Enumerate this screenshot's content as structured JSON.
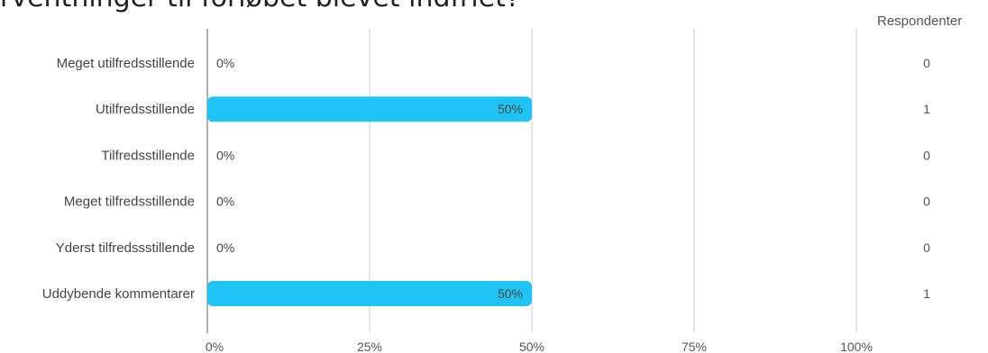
{
  "page": {
    "title": "rventninger til forløbet blevet indfriet?",
    "respondents_header": "Respondenter"
  },
  "colors": {
    "bar": "#20c4f4",
    "grid": "#cfcfcf",
    "axis": "#999999"
  },
  "chart_data": {
    "type": "bar",
    "orientation": "horizontal",
    "categories": [
      "Meget utilfredsstillende",
      "Utilfredsstillende",
      "Tilfredsstillende",
      "Meget tilfredsstillende",
      "Yderst tilfredssstillende",
      "Uddybende kommentarer"
    ],
    "values": [
      0,
      50,
      0,
      0,
      0,
      50
    ],
    "value_labels": [
      "0%",
      "50%",
      "0%",
      "0%",
      "0%",
      "50%"
    ],
    "respondents": [
      0,
      1,
      0,
      0,
      0,
      1
    ],
    "xlim": [
      0,
      100
    ],
    "xticks": [
      "0%",
      "25%",
      "50%",
      "75%",
      "100%"
    ],
    "grid": true
  }
}
